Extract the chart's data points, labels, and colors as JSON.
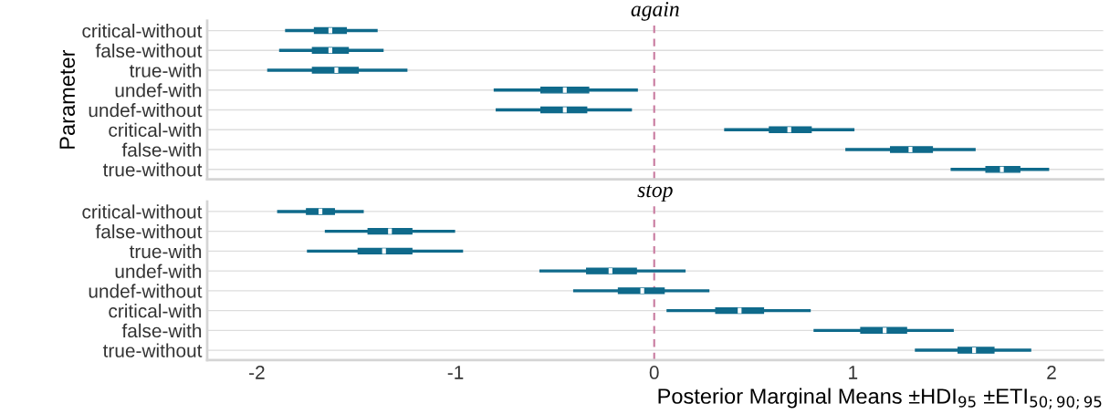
{
  "chart_data": [
    {
      "type": "box",
      "orientation": "horizontal",
      "title": "again",
      "ylabel": "Parameter",
      "tick_labels": "y",
      "grid": "y",
      "color": "#0f6a8b",
      "categories": [
        "critical-without",
        "false-without",
        "true-with",
        "undef-with",
        "undef-without",
        "critical-with",
        "false-with",
        "true-without"
      ],
      "boxes": [
        {
          "low": -1.85,
          "q1": -1.71,
          "median": -1.63,
          "q3": -1.55,
          "high": -1.4
        },
        {
          "low": -1.88,
          "q1": -1.72,
          "median": -1.63,
          "q3": -1.54,
          "high": -1.37
        },
        {
          "low": -1.94,
          "q1": -1.72,
          "median": -1.6,
          "q3": -1.49,
          "high": -1.25
        },
        {
          "low": -0.8,
          "q1": -0.57,
          "median": -0.45,
          "q3": -0.33,
          "high": -0.09
        },
        {
          "low": -0.79,
          "q1": -0.57,
          "median": -0.45,
          "q3": -0.34,
          "high": -0.12
        },
        {
          "low": 0.36,
          "q1": 0.58,
          "median": 0.68,
          "q3": 0.79,
          "high": 1.0
        },
        {
          "low": 0.97,
          "q1": 1.19,
          "median": 1.29,
          "q3": 1.4,
          "high": 1.61
        },
        {
          "low": 1.5,
          "q1": 1.67,
          "median": 1.75,
          "q3": 1.84,
          "high": 1.98
        }
      ],
      "xlim": [
        -2.25,
        2.26
      ],
      "xticks": [
        -2,
        -1,
        0,
        1,
        2
      ],
      "ref_lines": [
        {
          "axis": "x",
          "value": 0,
          "color": "#c8799e",
          "line_style": "dashed"
        }
      ]
    },
    {
      "type": "box",
      "orientation": "horizontal",
      "title": "stop",
      "xlabel": "Posterior Marginal Means ±HDI$_{95}$ ±ETI$_{50;90;95}$",
      "grid": "y",
      "color": "#0f6a8b",
      "categories": [
        "critical-without",
        "false-without",
        "true-with",
        "undef-with",
        "undef-without",
        "critical-with",
        "false-with",
        "true-without"
      ],
      "boxes": [
        {
          "low": -1.89,
          "q1": -1.75,
          "median": -1.68,
          "q3": -1.61,
          "high": -1.47
        },
        {
          "low": -1.65,
          "q1": -1.44,
          "median": -1.33,
          "q3": -1.22,
          "high": -1.01
        },
        {
          "low": -1.74,
          "q1": -1.49,
          "median": -1.36,
          "q3": -1.22,
          "high": -0.97
        },
        {
          "low": -0.57,
          "q1": -0.34,
          "median": -0.22,
          "q3": -0.09,
          "high": 0.15
        },
        {
          "low": -0.4,
          "q1": -0.18,
          "median": -0.06,
          "q3": 0.05,
          "high": 0.27
        },
        {
          "low": 0.07,
          "q1": 0.31,
          "median": 0.43,
          "q3": 0.55,
          "high": 0.78
        },
        {
          "low": 0.81,
          "q1": 1.04,
          "median": 1.16,
          "q3": 1.27,
          "high": 1.5
        },
        {
          "low": 1.32,
          "q1": 1.53,
          "median": 1.61,
          "q3": 1.71,
          "high": 1.89
        }
      ],
      "xlim": [
        -2.25,
        2.26
      ],
      "xticks": [
        -2,
        -1,
        0,
        1,
        2
      ],
      "ref_lines": [
        {
          "axis": "x",
          "value": 0,
          "color": "#c8799e",
          "line_style": "dashed"
        }
      ]
    }
  ]
}
